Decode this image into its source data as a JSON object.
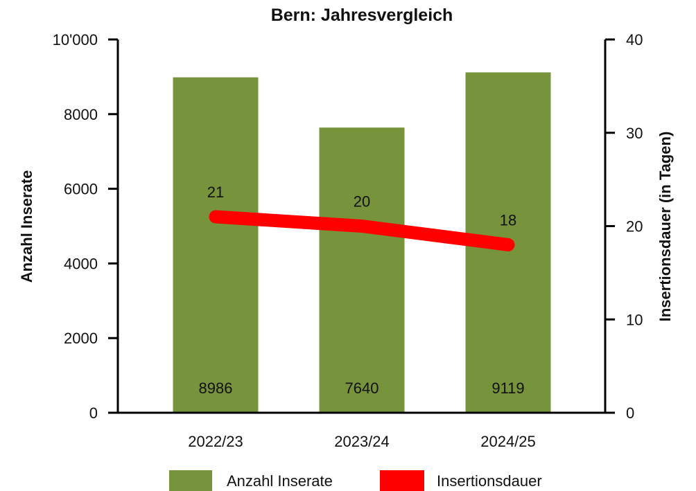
{
  "chart_data": {
    "type": "bar",
    "title": "Bern: Jahresvergleich",
    "categories": [
      "2022/23",
      "2023/24",
      "2024/25"
    ],
    "series": [
      {
        "name": "Anzahl Inserate",
        "type": "bar",
        "axis": "left",
        "color": "#77933c",
        "values": [
          8986,
          7640,
          9119
        ]
      },
      {
        "name": "Insertionsdauer",
        "type": "line",
        "axis": "right",
        "color": "#ff0000",
        "values": [
          21,
          20,
          18
        ]
      }
    ],
    "ylabel": "Anzahl Inserate",
    "ylabel_right": "Insertionsdauer (in Tagen)",
    "ylim": [
      0,
      10000
    ],
    "ylim_right": [
      0,
      40
    ],
    "yticks": [
      "0",
      "2000",
      "4000",
      "6000",
      "8000",
      "10'000"
    ],
    "yticks_right": [
      "0",
      "10",
      "20",
      "30",
      "40"
    ],
    "bar_labels": [
      "8986",
      "7640",
      "9119"
    ],
    "line_labels": [
      "21",
      "20",
      "18"
    ],
    "grid": false,
    "legend_position": "bottom"
  }
}
